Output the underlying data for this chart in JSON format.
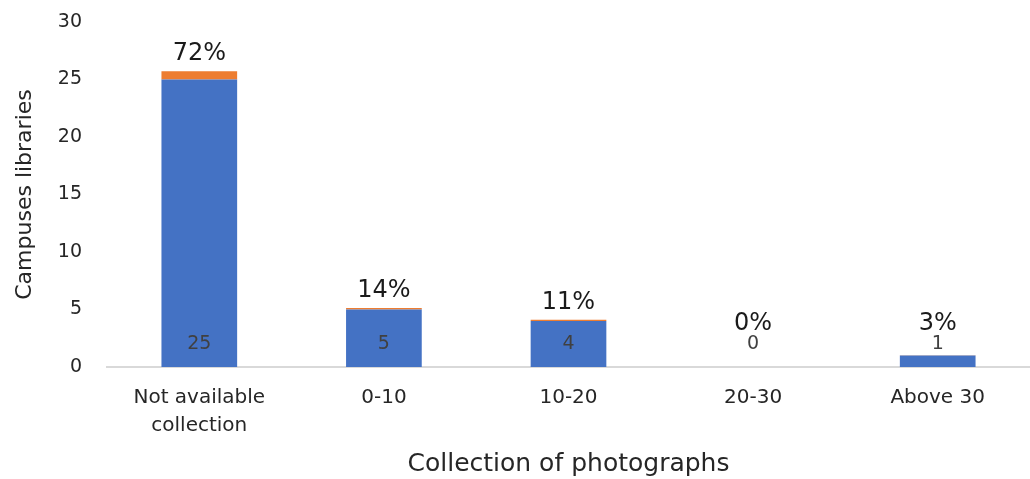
{
  "chart_data": {
    "type": "bar",
    "stacked": true,
    "categories": [
      "Not available collection",
      "0-10",
      "10-20",
      "20-30",
      "Above 30"
    ],
    "series": [
      {
        "color": "#4472c4",
        "values": [
          25,
          5,
          4,
          0,
          1
        ],
        "value_labels": [
          "25",
          "5",
          "4",
          "0",
          "1"
        ]
      },
      {
        "color": "#ed7d31",
        "values": [
          0.72,
          0.14,
          0.11,
          0,
          0.03
        ],
        "value_labels": [
          "72%",
          "14%",
          "11%",
          "0%",
          "3%"
        ]
      }
    ],
    "xlabel": "Collection of photographs",
    "ylabel": "Campuses libraries",
    "ylim": [
      0,
      30
    ],
    "yticks": [
      0,
      5,
      10,
      15,
      20,
      25,
      30
    ],
    "grid": false,
    "legend": false
  }
}
